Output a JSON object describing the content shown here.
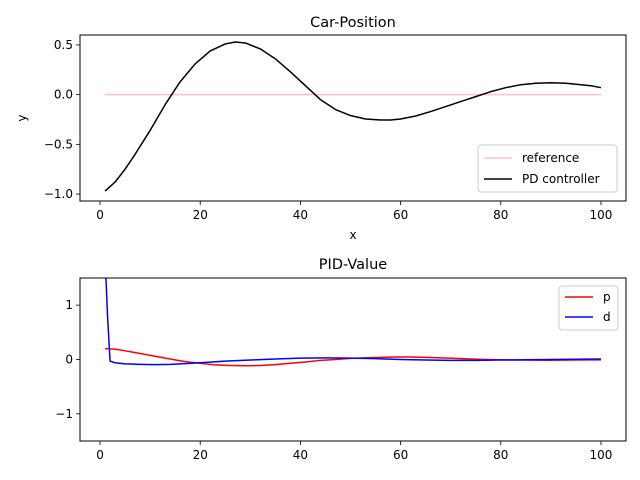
{
  "chart_data": [
    {
      "type": "line",
      "title": "Car-Position",
      "xlabel": "x",
      "ylabel": "y",
      "xlim": [
        -4,
        105
      ],
      "ylim": [
        -1.07,
        0.6
      ],
      "xticks": [
        0,
        20,
        40,
        60,
        80,
        100
      ],
      "xtick_labels": [
        "0",
        "20",
        "40",
        "60",
        "80",
        "100"
      ],
      "yticks": [
        -1.0,
        -0.5,
        0.0,
        0.5
      ],
      "ytick_labels": [
        "−1.0",
        "−0.5",
        "0.0",
        "0.5"
      ],
      "grid": false,
      "legend_position": "bottom-right",
      "series": [
        {
          "name": "reference",
          "color": "#ffc0cb",
          "x": [
            1,
            100
          ],
          "y": [
            0,
            0
          ]
        },
        {
          "name": "PD controller",
          "color": "#000000",
          "x": [
            1,
            3,
            5,
            7,
            10,
            13,
            16,
            19,
            22,
            25,
            27,
            29,
            32,
            35,
            38,
            41,
            44,
            47,
            50,
            53,
            56,
            58,
            60,
            63,
            66,
            69,
            72,
            75,
            78,
            81,
            84,
            87,
            90,
            93,
            96,
            98,
            100
          ],
          "y": [
            -0.97,
            -0.88,
            -0.75,
            -0.6,
            -0.36,
            -0.1,
            0.13,
            0.31,
            0.44,
            0.51,
            0.53,
            0.52,
            0.46,
            0.36,
            0.23,
            0.09,
            -0.05,
            -0.15,
            -0.21,
            -0.245,
            -0.255,
            -0.255,
            -0.245,
            -0.215,
            -0.17,
            -0.12,
            -0.07,
            -0.02,
            0.03,
            0.07,
            0.1,
            0.115,
            0.12,
            0.115,
            0.1,
            0.09,
            0.07
          ]
        }
      ]
    },
    {
      "type": "line",
      "title": "PID-Value",
      "xlabel": "",
      "ylabel": "",
      "xlim": [
        -4,
        105
      ],
      "ylim": [
        -1.5,
        1.5
      ],
      "xticks": [
        0,
        20,
        40,
        60,
        80,
        100
      ],
      "xtick_labels": [
        "0",
        "20",
        "40",
        "60",
        "80",
        "100"
      ],
      "yticks": [
        -1,
        0,
        1
      ],
      "ytick_labels": [
        "−1",
        "0",
        "1"
      ],
      "grid": false,
      "legend_position": "top-right",
      "series": [
        {
          "name": "p",
          "color": "#ff0000",
          "x": [
            1,
            3,
            5,
            8,
            11,
            14,
            17,
            20,
            23,
            26,
            29,
            32,
            35,
            38,
            41,
            44,
            47,
            50,
            53,
            56,
            59,
            62,
            65,
            68,
            71,
            74,
            77,
            80,
            83,
            86,
            89,
            92,
            95,
            98,
            100
          ],
          "y": [
            0.2,
            0.19,
            0.16,
            0.11,
            0.06,
            0.01,
            -0.04,
            -0.07,
            -0.1,
            -0.11,
            -0.115,
            -0.11,
            -0.095,
            -0.07,
            -0.045,
            -0.015,
            0.0,
            0.02,
            0.03,
            0.04,
            0.045,
            0.045,
            0.04,
            0.03,
            0.02,
            0.01,
            0.0,
            -0.005,
            -0.01,
            -0.012,
            -0.013,
            -0.012,
            -0.01,
            -0.008,
            -0.007
          ]
        },
        {
          "name": "d",
          "color": "#0000ff",
          "x": [
            1,
            1.5,
            2,
            3,
            5,
            8,
            11,
            14,
            17,
            20,
            25,
            30,
            35,
            40,
            45,
            50,
            55,
            60,
            65,
            70,
            75,
            80,
            85,
            90,
            95,
            100
          ],
          "y": [
            1.9,
            0.8,
            -0.03,
            -0.06,
            -0.08,
            -0.09,
            -0.095,
            -0.09,
            -0.075,
            -0.06,
            -0.03,
            -0.01,
            0.01,
            0.025,
            0.03,
            0.025,
            0.015,
            0.0,
            -0.01,
            -0.015,
            -0.015,
            -0.01,
            -0.005,
            0.0,
            0.005,
            0.01
          ]
        }
      ]
    }
  ]
}
